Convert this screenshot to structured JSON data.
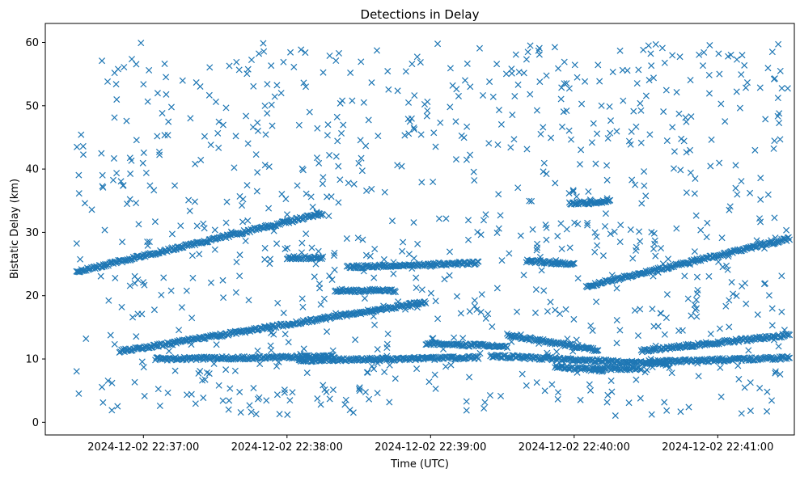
{
  "chart_data": {
    "type": "scatter",
    "title": "Detections in Delay",
    "xlabel": "Time (UTC)",
    "ylabel": "Bistatic Delay (km)",
    "marker": "x",
    "color": "#1f77b4",
    "grid": false,
    "xlim": [
      "2024-12-02 22:36:19",
      "2024-12-02 22:41:32"
    ],
    "ylim": [
      -2,
      63
    ],
    "x_ticks": [
      "2024-12-02 22:37:00",
      "2024-12-02 22:38:00",
      "2024-12-02 22:39:00",
      "2024-12-02 22:40:00",
      "2024-12-02 22:41:00"
    ],
    "y_ticks": [
      0,
      10,
      20,
      30,
      40,
      50,
      60
    ],
    "time_range": [
      "2024-12-02 22:36:32",
      "2024-12-02 22:41:30"
    ],
    "delay_range": [
      1,
      60
    ],
    "tracks": [
      {
        "start": "2024-12-02 22:36:32",
        "end": "2024-12-02 22:38:15",
        "delay_start": 23.8,
        "delay_end": 33.0
      },
      {
        "start": "2024-12-02 22:36:50",
        "end": "2024-12-02 22:38:58",
        "delay_start": 11.2,
        "delay_end": 19.0
      },
      {
        "start": "2024-12-02 22:38:58",
        "end": "2024-12-02 22:39:32",
        "delay_start": 12.4,
        "delay_end": 12.0
      },
      {
        "start": "2024-12-02 22:39:32",
        "end": "2024-12-02 22:40:10",
        "delay_start": 13.8,
        "delay_end": 11.4
      },
      {
        "start": "2024-12-02 22:40:08",
        "end": "2024-12-02 22:40:28",
        "delay_start": 8.5,
        "delay_end": 8.5
      },
      {
        "start": "2024-12-02 22:39:52",
        "end": "2024-12-02 22:40:12",
        "delay_start": 8.8,
        "delay_end": 8.2
      },
      {
        "start": "2024-12-02 22:40:28",
        "end": "2024-12-02 22:41:30",
        "delay_start": 11.3,
        "delay_end": 13.8
      },
      {
        "start": "2024-12-02 22:40:05",
        "end": "2024-12-02 22:41:30",
        "delay_start": 21.5,
        "delay_end": 29.0
      },
      {
        "start": "2024-12-02 22:39:58",
        "end": "2024-12-02 22:40:15",
        "delay_start": 34.5,
        "delay_end": 34.9
      },
      {
        "start": "2024-12-02 22:37:05",
        "end": "2024-12-02 22:38:20",
        "delay_start": 10.0,
        "delay_end": 10.4
      },
      {
        "start": "2024-12-02 22:38:05",
        "end": "2024-12-02 22:39:20",
        "delay_start": 9.8,
        "delay_end": 10.2
      },
      {
        "start": "2024-12-02 22:39:25",
        "end": "2024-12-02 22:40:40",
        "delay_start": 10.5,
        "delay_end": 9.2
      },
      {
        "start": "2024-12-02 22:40:30",
        "end": "2024-12-02 22:41:30",
        "delay_start": 9.5,
        "delay_end": 10.2
      },
      {
        "start": "2024-12-02 22:38:25",
        "end": "2024-12-02 22:39:20",
        "delay_start": 24.5,
        "delay_end": 25.2
      },
      {
        "start": "2024-12-02 22:39:40",
        "end": "2024-12-02 22:40:00",
        "delay_start": 25.5,
        "delay_end": 25.0
      },
      {
        "start": "2024-12-02 22:38:00",
        "end": "2024-12-02 22:38:15",
        "delay_start": 26.0,
        "delay_end": 26.0
      },
      {
        "start": "2024-12-02 22:38:20",
        "end": "2024-12-02 22:38:45",
        "delay_start": 20.8,
        "delay_end": 20.8
      }
    ],
    "scattered_points": 900
  }
}
